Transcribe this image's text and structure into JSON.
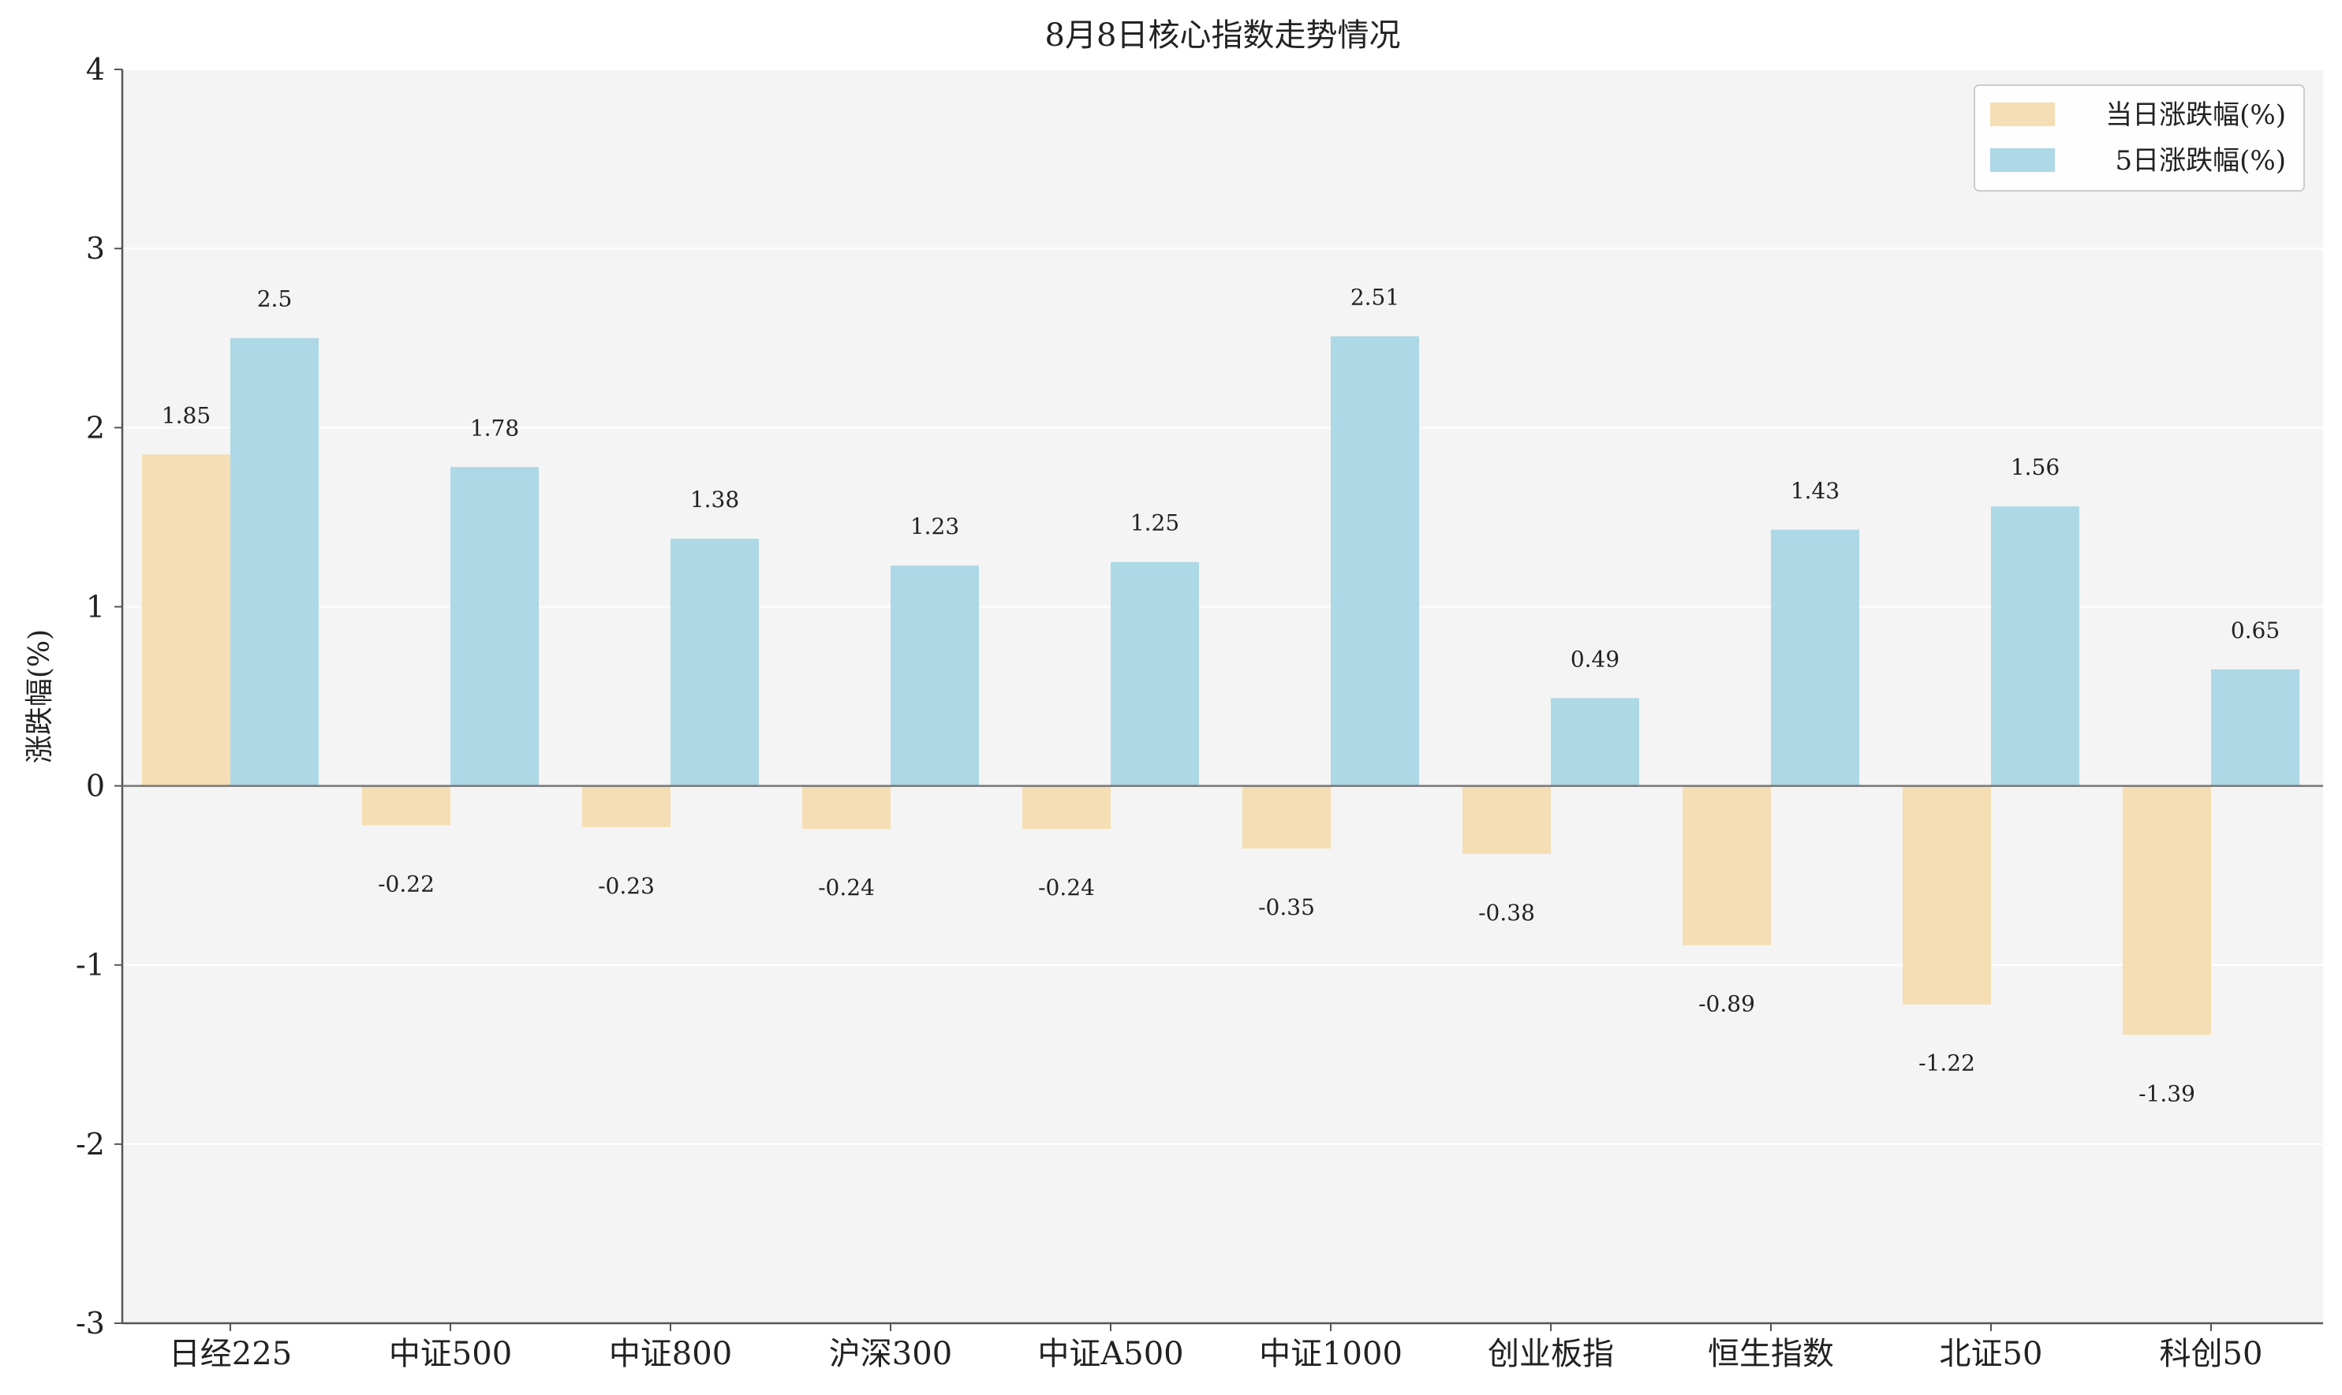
{
  "chart_data": {
    "type": "bar",
    "title": "8月8日核心指数走势情况",
    "xlabel": "",
    "ylabel": "涨跌幅(%)",
    "ylim": [
      -3,
      4
    ],
    "yticks": [
      -3,
      -2,
      -1,
      0,
      1,
      2,
      3,
      4
    ],
    "grid": true,
    "legend_position": "top-right",
    "categories": [
      "日经225",
      "中证500",
      "中证800",
      "沪深300",
      "中证A500",
      "中证1000",
      "创业板指",
      "恒生指数",
      "北证50",
      "科创50"
    ],
    "series": [
      {
        "name": "当日涨跌幅(%)",
        "color": "#F5DEB3",
        "values": [
          1.85,
          -0.22,
          -0.23,
          -0.24,
          -0.24,
          -0.35,
          -0.38,
          -0.89,
          -1.22,
          -1.39
        ]
      },
      {
        "name": "5日涨跌幅(%)",
        "color": "#ADD8E6",
        "values": [
          2.5,
          1.78,
          1.38,
          1.23,
          1.25,
          2.51,
          0.49,
          1.43,
          1.56,
          0.65
        ]
      }
    ],
    "colors": {
      "plot_background": "#F4F4F4",
      "axis": "#555555",
      "zero_line": "#777777",
      "grid": "#FFFFFF"
    }
  }
}
